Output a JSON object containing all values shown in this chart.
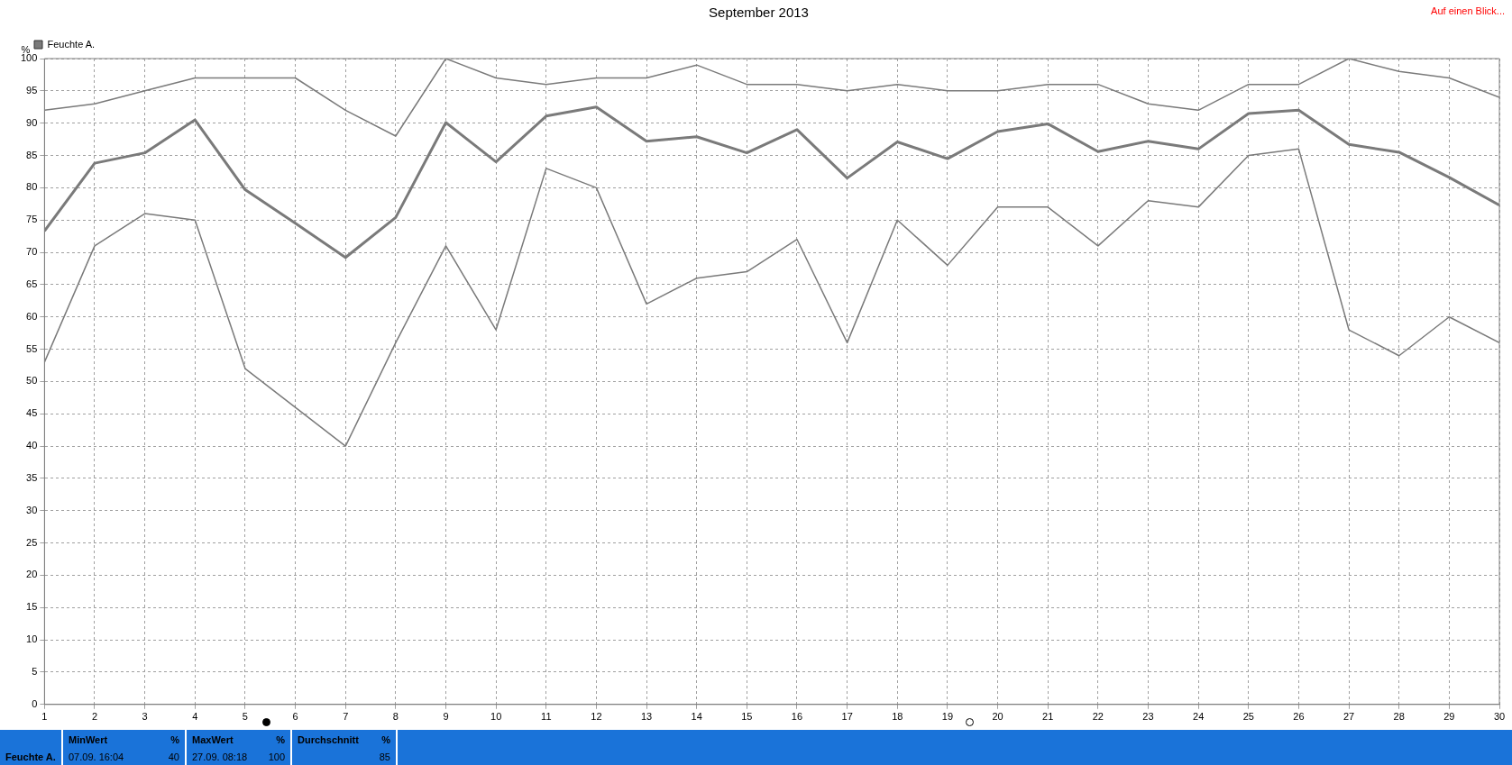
{
  "chart_data": {
    "type": "line",
    "title": "September 2013",
    "ylabel": "%",
    "x": [
      1,
      2,
      3,
      4,
      5,
      6,
      7,
      8,
      9,
      10,
      11,
      12,
      13,
      14,
      15,
      16,
      17,
      18,
      19,
      20,
      21,
      22,
      23,
      24,
      25,
      26,
      27,
      28,
      29,
      30
    ],
    "series": [
      {
        "color": "#7a7a7a",
        "values": [
          92,
          93,
          95,
          97,
          97,
          97,
          92,
          88,
          100,
          97,
          96,
          97,
          97,
          99,
          96,
          96,
          95,
          96,
          95,
          95,
          96,
          96,
          93,
          92,
          96,
          96,
          100,
          98,
          97,
          94
        ]
      },
      {
        "name": "Feuchte A.",
        "color": "#7a7a7a",
        "values": [
          73.3,
          83.8,
          85.4,
          90.5,
          79.7,
          74.5,
          69.2,
          75.4,
          90.1,
          84,
          91.1,
          92.5,
          87.2,
          87.9,
          85.4,
          89,
          81.5,
          87.1,
          84.5,
          88.7,
          89.9,
          85.6,
          87.2,
          86,
          91.5,
          92,
          86.7,
          85.5,
          81.6,
          77.3
        ]
      },
      {
        "color": "#7a7a7a",
        "values": [
          53,
          71,
          76,
          75,
          52,
          46,
          40,
          56,
          71,
          58,
          83,
          80,
          62,
          66,
          67,
          72,
          56,
          75,
          68,
          77,
          77,
          71,
          78,
          77,
          85,
          86,
          58,
          54,
          60,
          56
        ]
      }
    ],
    "xlim": [
      1,
      30
    ],
    "xticks": [
      1,
      2,
      3,
      4,
      5,
      6,
      7,
      8,
      9,
      10,
      11,
      12,
      13,
      14,
      15,
      16,
      17,
      18,
      19,
      20,
      21,
      22,
      23,
      24,
      25,
      26,
      27,
      28,
      29,
      30
    ],
    "ylim": [
      0,
      100
    ],
    "yticks": [
      0,
      5,
      10,
      15,
      20,
      25,
      30,
      35,
      40,
      45,
      50,
      55,
      60,
      65,
      70,
      75,
      80,
      85,
      90,
      95,
      100
    ],
    "grid": true,
    "legend": "top left",
    "marker": "none",
    "line_style": "solid",
    "annotations": [
      "Auf einen Blick...",
      "Feuchte A.",
      "MinWert",
      "%",
      "07.09.  16:04",
      "40",
      "MaxWert",
      "%",
      "27.09.  08:18",
      "100",
      "Durchschnitt",
      "%",
      "85"
    ]
  }
}
